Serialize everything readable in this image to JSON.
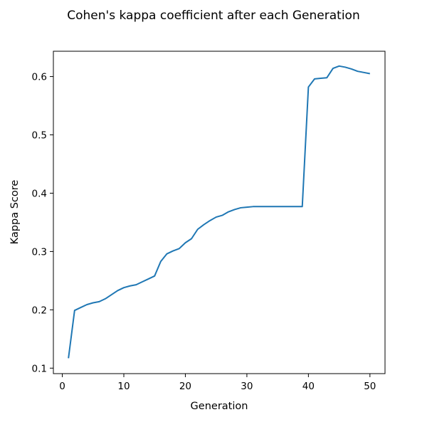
{
  "chart_data": {
    "type": "line",
    "title": "Cohen's kappa coefficient after each Generation",
    "xlabel": "Generation",
    "ylabel": "Kappa Score",
    "xlim": [
      -1.45,
      52.45
    ],
    "ylim": [
      0.0906,
      0.6434
    ],
    "xticks": [
      0,
      10,
      20,
      30,
      40,
      50
    ],
    "yticks": [
      0.1,
      0.2,
      0.3,
      0.4,
      0.5,
      0.6
    ],
    "xtick_labels": [
      "0",
      "10",
      "20",
      "30",
      "40",
      "50"
    ],
    "ytick_labels": [
      "0.1",
      "0.2",
      "0.3",
      "0.4",
      "0.5",
      "0.6"
    ],
    "grid": false,
    "legend": false,
    "line_color": "#1f77b4",
    "series": [
      {
        "x": [
          1,
          2,
          3,
          4,
          5,
          6,
          7,
          8,
          9,
          10,
          11,
          12,
          13,
          14,
          15,
          16,
          17,
          18,
          19,
          20,
          21,
          22,
          23,
          24,
          25,
          26,
          27,
          28,
          29,
          30,
          31,
          32,
          33,
          34,
          35,
          36,
          37,
          38,
          39,
          40,
          41,
          42,
          43,
          44,
          45,
          46,
          47,
          48,
          49,
          50
        ],
        "values": [
          0.117,
          0.199,
          0.204,
          0.209,
          0.212,
          0.214,
          0.219,
          0.226,
          0.233,
          0.238,
          0.241,
          0.243,
          0.248,
          0.253,
          0.258,
          0.283,
          0.296,
          0.301,
          0.305,
          0.315,
          0.322,
          0.338,
          0.346,
          0.353,
          0.359,
          0.362,
          0.368,
          0.372,
          0.375,
          0.376,
          0.377,
          0.377,
          0.377,
          0.377,
          0.377,
          0.377,
          0.377,
          0.377,
          0.377,
          0.582,
          0.596,
          0.597,
          0.598,
          0.614,
          0.618,
          0.616,
          0.613,
          0.609,
          0.607,
          0.605
        ]
      }
    ]
  }
}
